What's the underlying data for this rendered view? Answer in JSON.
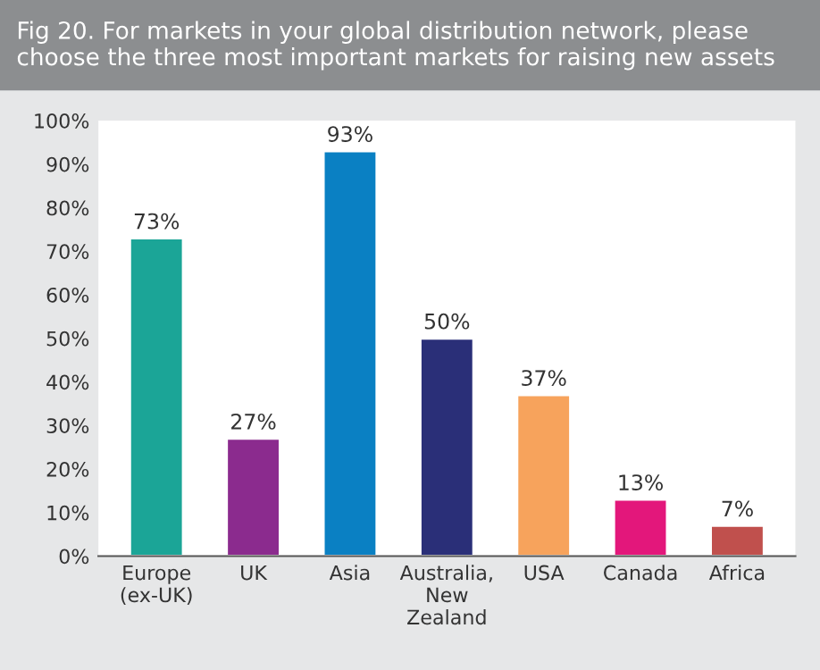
{
  "chart_data": {
    "type": "bar",
    "title": "Fig 20. For markets in your global distribution network, please choose the three most important markets for raising new assets",
    "categories": [
      "Europe\n(ex-UK)",
      "UK",
      "Asia",
      "Australia,\nNew\nZealand",
      "USA",
      "Canada",
      "Africa"
    ],
    "values": [
      73,
      27,
      93,
      50,
      37,
      13,
      7
    ],
    "colors": [
      "#1ba597",
      "#8b2b8e",
      "#0a80c3",
      "#2a2f78",
      "#f7a35c",
      "#e3177b",
      "#c0504d"
    ],
    "value_labels": [
      "73%",
      "27%",
      "93%",
      "50%",
      "37%",
      "13%",
      "7%"
    ],
    "ylim": [
      0,
      100
    ],
    "yticks": [
      {
        "value": 0,
        "label": "0%"
      },
      {
        "value": 10,
        "label": "10%"
      },
      {
        "value": 20,
        "label": "20%"
      },
      {
        "value": 30,
        "label": "30%"
      },
      {
        "value": 40,
        "label": "40%"
      },
      {
        "value": 50,
        "label": "50%"
      },
      {
        "value": 60,
        "label": "60%"
      },
      {
        "value": 70,
        "label": "70%"
      },
      {
        "value": 80,
        "label": "80%"
      },
      {
        "value": 90,
        "label": "90%"
      },
      {
        "value": 100,
        "label": "100%"
      }
    ],
    "grid": false
  }
}
